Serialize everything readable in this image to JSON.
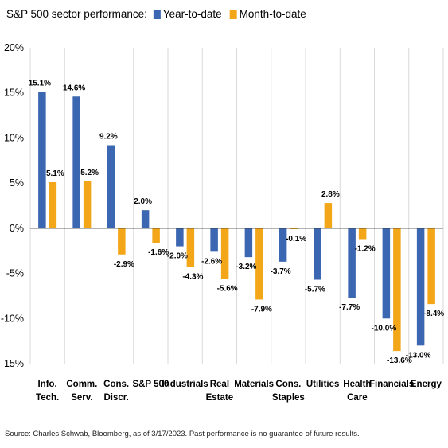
{
  "chart_data": {
    "type": "bar",
    "title": "S&P 500 sector performance:",
    "categories": [
      [
        "Info.",
        "Tech."
      ],
      [
        "Comm.",
        "Serv."
      ],
      [
        "Cons.",
        "Discr."
      ],
      [
        "S&P 500"
      ],
      [
        "Industrials"
      ],
      [
        "Real",
        "Estate"
      ],
      [
        "Materials"
      ],
      [
        "Cons.",
        "Staples"
      ],
      [
        "Utilities"
      ],
      [
        "Health",
        "Care"
      ],
      [
        "Financials"
      ],
      [
        "Energy"
      ]
    ],
    "series": [
      {
        "name": "Year-to-date",
        "color": "#3b66b1",
        "values": [
          15.1,
          14.6,
          9.2,
          2.0,
          -2.0,
          -2.6,
          -3.2,
          -3.7,
          -5.7,
          -7.7,
          -10.0,
          -13.0
        ],
        "labels": [
          "15.1%",
          "14.6%",
          "9.2%",
          "2.0%",
          "-2.0%",
          "-2.6%",
          "-3.2%",
          "-3.7%",
          "-5.7%",
          "-7.7%",
          "-10.0%",
          "-13.0%"
        ]
      },
      {
        "name": "Month-to-date",
        "color": "#f4a619",
        "values": [
          5.1,
          5.2,
          -2.9,
          -1.6,
          -4.3,
          -5.6,
          -7.9,
          -0.1,
          2.8,
          -1.2,
          -13.6,
          -8.4
        ],
        "labels": [
          "5.1%",
          "5.2%",
          "-2.9%",
          "-1.6%",
          "-4.3%",
          "-5.6%",
          "-7.9%",
          "-0.1%",
          "2.8%",
          "-1.2%",
          "-13.6%",
          "-8.4%"
        ]
      }
    ],
    "ylim": [
      -15,
      20
    ],
    "yticks": [
      20,
      15,
      10,
      5,
      0,
      -5,
      -10,
      -15
    ],
    "ytick_labels": [
      "20%",
      "15%",
      "10%",
      "5%",
      "0%",
      "-5%",
      "-10%",
      "-15%"
    ],
    "grid": "vertical-category-separators",
    "legend_position": "top"
  },
  "source_note": "Source: Charles Schwab, Bloomberg, as of 3/17/2023. Past performance is no guarantee of future results."
}
